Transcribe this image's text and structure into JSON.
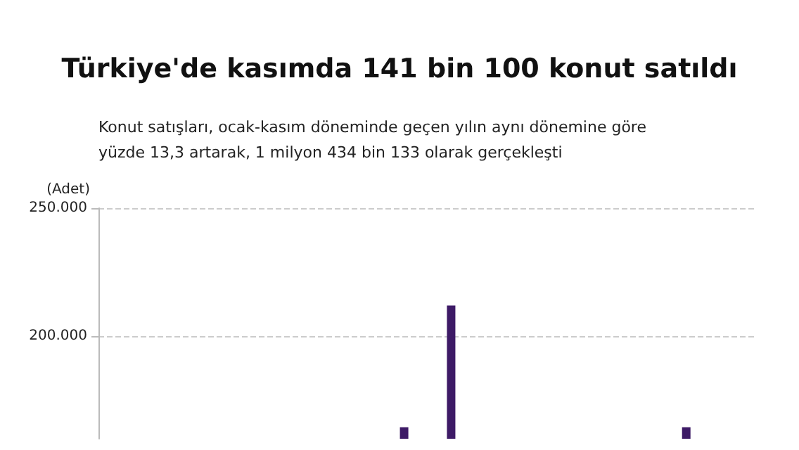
{
  "chart_data": {
    "type": "bar",
    "title": "Türkiye'de kasımda 141 bin 100 konut satıldı",
    "subtitle": "Konut satışları, ocak-kasım döneminde geçen yılın aynı dönemine göre yüzde 13,3 artarak, 1 milyon 434 bin 133 olarak gerçekleşti",
    "ylabel": "(Adet)",
    "categories": [
      null,
      null,
      null,
      null,
      null,
      null,
      null,
      null,
      null,
      null,
      null,
      null,
      null,
      null
    ],
    "values": [
      null,
      null,
      null,
      null,
      null,
      null,
      164500,
      212000,
      null,
      null,
      null,
      null,
      164500,
      null
    ],
    "color": "#3d1a66",
    "ylim": [
      160000,
      250000
    ],
    "yticks": [
      {
        "value": 200000,
        "label": "200.000"
      },
      {
        "value": 250000,
        "label": "250.000"
      }
    ],
    "grid": "y"
  }
}
